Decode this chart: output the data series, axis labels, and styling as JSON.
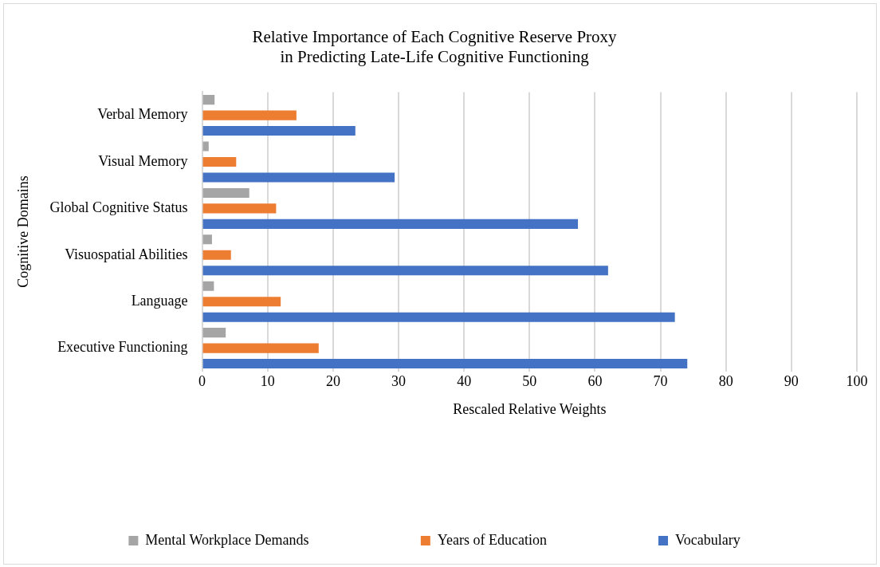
{
  "chart_data": {
    "type": "bar",
    "orientation": "horizontal",
    "title": "Relative Importance of Each Cognitive Reserve Proxy\nin Predicting Late-Life Cognitive Functioning",
    "xlabel": "Rescaled Relative Weights",
    "ylabel": "Cognitive Domains",
    "categories": [
      "Verbal Memory",
      "Visual Memory",
      "Global Cognitive Status",
      "Visuospatial Abilities",
      "Language",
      "Executive Functioning"
    ],
    "series": [
      {
        "name": "Mental Workplace Demands",
        "color": "#a5a5a5",
        "values": [
          1.9,
          1.0,
          7.2,
          1.5,
          1.8,
          3.6
        ]
      },
      {
        "name": "Years of Education",
        "color": "#ed7d31",
        "values": [
          14.4,
          5.2,
          11.3,
          4.4,
          12.0,
          17.8
        ]
      },
      {
        "name": "Vocabulary",
        "color": "#4472c4",
        "values": [
          23.4,
          29.4,
          57.4,
          62.0,
          72.2,
          74.1
        ]
      }
    ],
    "xlim": [
      0,
      100
    ],
    "xticks": [
      0,
      10,
      20,
      30,
      40,
      50,
      60,
      70,
      80,
      90,
      100
    ],
    "grid": "x",
    "legend": "bottom"
  }
}
